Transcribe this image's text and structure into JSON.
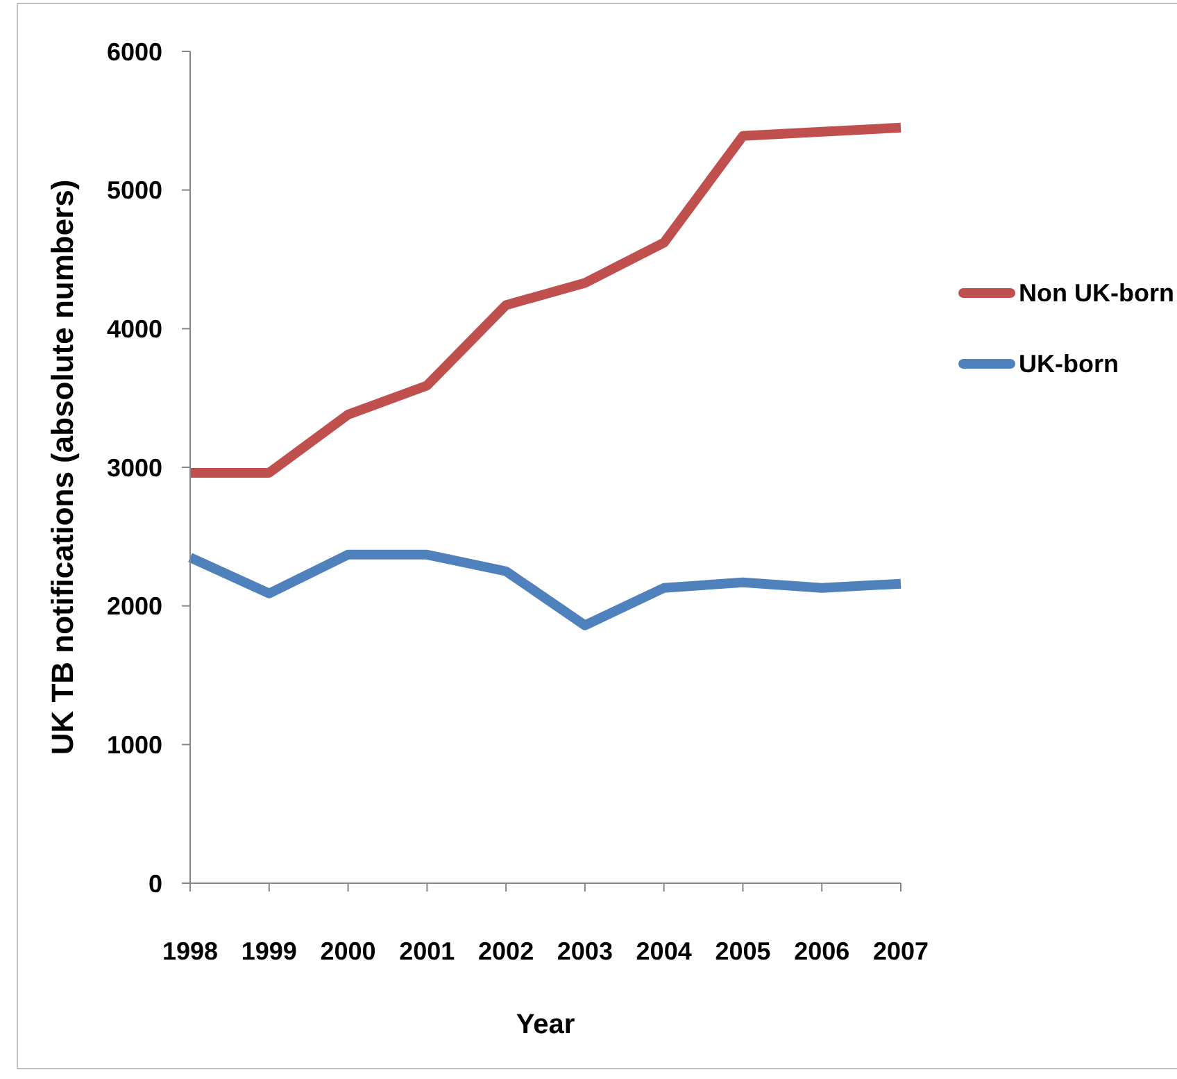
{
  "chart_data": {
    "type": "line",
    "xlabel": "Year",
    "ylabel": "UK TB notifications (absolute numbers)",
    "categories": [
      "1998",
      "1999",
      "2000",
      "2001",
      "2002",
      "2003",
      "2004",
      "2005",
      "2006",
      "2007"
    ],
    "series": [
      {
        "name": "Non UK-born",
        "color": "#c0504d",
        "values": [
          2960,
          2960,
          3380,
          3590,
          4170,
          4330,
          4620,
          5390,
          5420,
          5450
        ]
      },
      {
        "name": "UK-born",
        "color": "#4f81bd",
        "values": [
          2350,
          2090,
          2370,
          2370,
          2250,
          1860,
          2130,
          2170,
          2130,
          2160
        ]
      }
    ],
    "ylim": [
      0,
      6000
    ],
    "yticks": [
      0,
      1000,
      2000,
      3000,
      4000,
      5000,
      6000
    ],
    "grid": false,
    "legend": "right",
    "marker": "none",
    "line_style": "solid"
  }
}
